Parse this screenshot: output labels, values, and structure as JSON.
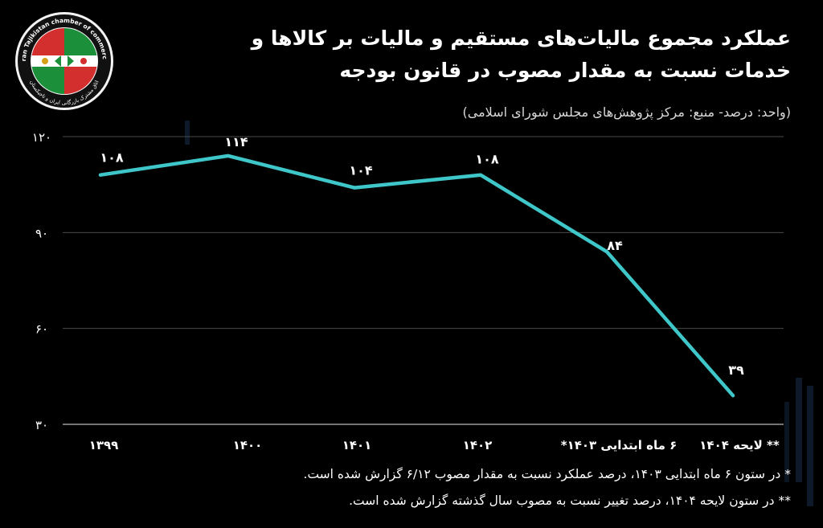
{
  "logo": {
    "name": "chamber-of-commerce-logo",
    "text_top": "Iran Tajikistan chamber of commerce",
    "text_bottom": "اتاق مشترک بازرگانی ایران و تاجیکستان",
    "colors": {
      "red": "#d32f2f",
      "green": "#1b8f3a",
      "ring": "#111111"
    }
  },
  "title": "عملکرد مجموع مالیات‌های مستقیم و مالیات بر کالاها و خدمات نسبت به مقدار مصوب در قانون بودجه",
  "subtitle": "(واحد: درصد- منبع: مرکز پژوهش‌های مجلس شورای اسلامی)",
  "chart_data": {
    "type": "line",
    "title": "عملکرد مجموع مالیات‌های مستقیم و مالیات بر کالاها و خدمات نسبت به مقدار مصوب در قانون بودجه",
    "categories": [
      "۱۳۹۹",
      "۱۴۰۰",
      "۱۴۰۱",
      "۱۴۰۲",
      "۶ ماه ابتدایی ۱۴۰۳*",
      "** لایحه ۱۴۰۴"
    ],
    "series": [
      {
        "values": [
          108,
          114,
          104,
          108,
          84,
          39
        ],
        "labels": [
          "۱۰۸",
          "۱۱۴",
          "۱۰۴",
          "۱۰۸",
          "۸۴",
          "۳۹"
        ]
      }
    ],
    "ylim": [
      30,
      120
    ],
    "yticks": [
      30,
      60,
      90,
      120
    ],
    "ytick_labels": [
      "۳۰",
      "۶۰",
      "۹۰",
      "۱۲۰"
    ],
    "grid": true,
    "xlabel": "",
    "ylabel": "",
    "line_color": "#3ec6c9"
  },
  "footnotes": [
    "* در ستون ۶ ماه ابتدایی ۱۴۰۳، درصد عملکرد نسبت به مقدار مصوب ۶/۱۲ گزارش شده است.",
    "** در ستون لایحه ۱۴۰۴، درصد تغییر نسبت به مصوب سال گذشته گزارش شده است."
  ],
  "colors": {
    "background": "#000000",
    "text": "#ffffff",
    "grid": "#4a4a4a",
    "axis": "#9a9a9a",
    "decor": "#0e1a2a"
  }
}
